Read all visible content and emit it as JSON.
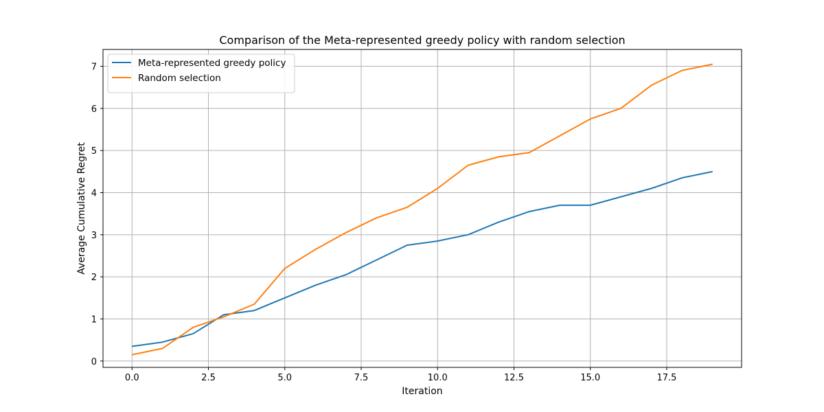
{
  "chart_data": {
    "type": "line",
    "title": "Comparison of the Meta-represented greedy policy with random selection",
    "xlabel": "Iteration",
    "ylabel": "Average Cumulative Regret",
    "xlim": [
      -0.95,
      19.95
    ],
    "ylim": [
      -0.15,
      7.4
    ],
    "xticks": [
      0.0,
      2.5,
      5.0,
      7.5,
      10.0,
      12.5,
      15.0,
      17.5
    ],
    "xtick_labels": [
      "0.0",
      "2.5",
      "5.0",
      "7.5",
      "10.0",
      "12.5",
      "15.0",
      "17.5"
    ],
    "yticks": [
      0,
      1,
      2,
      3,
      4,
      5,
      6,
      7
    ],
    "ytick_labels": [
      "0",
      "1",
      "2",
      "3",
      "4",
      "5",
      "6",
      "7"
    ],
    "grid": true,
    "legend_position": "top-left",
    "x": [
      0,
      1,
      2,
      3,
      4,
      5,
      6,
      7,
      8,
      9,
      10,
      11,
      12,
      13,
      14,
      15,
      16,
      17,
      18,
      19
    ],
    "series": [
      {
        "name": "Meta-represented greedy policy",
        "color": "#1f77b4",
        "values": [
          0.35,
          0.45,
          0.65,
          1.1,
          1.2,
          1.5,
          1.8,
          2.05,
          2.4,
          2.75,
          2.85,
          3.0,
          3.3,
          3.55,
          3.7,
          3.7,
          3.9,
          4.1,
          4.35,
          4.5
        ]
      },
      {
        "name": "Random selection",
        "color": "#ff7f0e",
        "values": [
          0.15,
          0.3,
          0.8,
          1.05,
          1.35,
          2.2,
          2.65,
          3.05,
          3.4,
          3.65,
          4.1,
          4.65,
          4.85,
          4.95,
          5.35,
          5.75,
          6.0,
          6.55,
          6.9,
          7.05
        ]
      }
    ]
  }
}
